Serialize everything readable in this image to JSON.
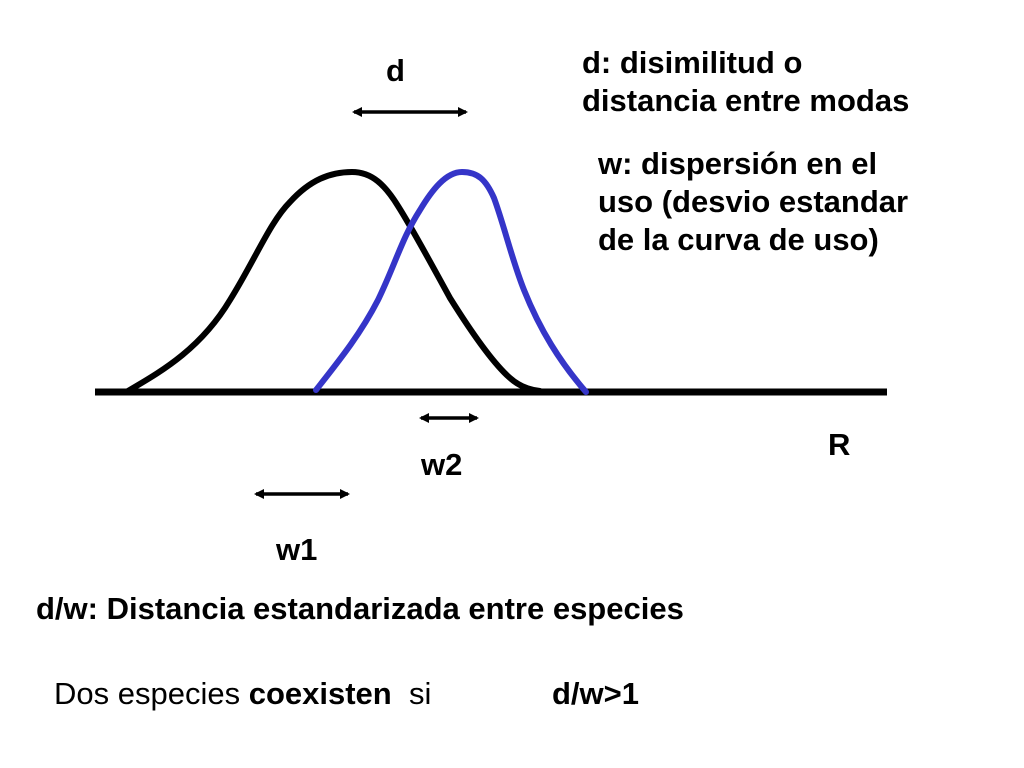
{
  "labels": {
    "d": "d",
    "w1": "w1",
    "w2": "w2",
    "axis": "R"
  },
  "notes": {
    "d_definition": [
      "d: disimilitud o",
      "distancia entre modas"
    ],
    "w_definition": [
      "w: dispersión en el",
      "uso (desvio estandar",
      "de la curva de uso)"
    ]
  },
  "definition_dw": "d/w: Distancia estandarizada entre especies",
  "rule": {
    "prefix": "Dos especies ",
    "emphasis": "coexisten",
    "suffix": "  si",
    "condition": "d/w>1"
  },
  "colors": {
    "curve_species_1": "#000000",
    "curve_species_2": "#3535c8",
    "axis": "#000000"
  }
}
